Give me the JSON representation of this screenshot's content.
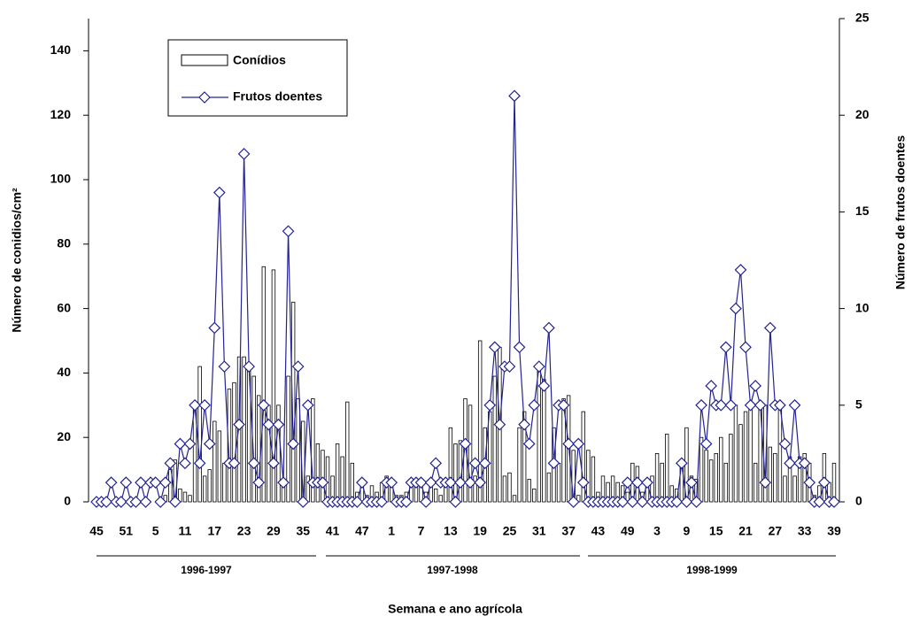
{
  "chart_data": {
    "type": "bar-line",
    "xlabel": "Semana e ano agrícola",
    "ylabel": "Número de conidios/cm²",
    "y2label": "Número de frutos doentes",
    "season_labels": [
      "1996-1997",
      "1997-1998",
      "1998-1999"
    ],
    "categories": [
      "45",
      null,
      null,
      null,
      null,
      null,
      "51",
      null,
      null,
      null,
      null,
      null,
      "5",
      null,
      null,
      null,
      null,
      null,
      "11",
      null,
      null,
      null,
      null,
      null,
      "17",
      null,
      null,
      null,
      null,
      null,
      "23",
      null,
      null,
      null,
      null,
      null,
      "29",
      null,
      null,
      null,
      null,
      null,
      "35",
      null,
      null,
      null,
      null,
      null,
      "41",
      null,
      null,
      null,
      null,
      null,
      "47",
      null,
      null,
      null,
      null,
      null,
      "1",
      null,
      null,
      null,
      null,
      null,
      "7",
      null,
      null,
      null,
      null,
      null,
      "13",
      null,
      null,
      null,
      null,
      null,
      "19",
      null,
      null,
      null,
      null,
      null,
      "25",
      null,
      null,
      null,
      null,
      null,
      "31",
      null,
      null,
      null,
      null,
      null,
      "37",
      null,
      null,
      null,
      null,
      null,
      "43",
      null,
      null,
      null,
      null,
      null,
      "49",
      null,
      null,
      null,
      null,
      null,
      "3",
      null,
      null,
      null,
      null,
      null,
      "9",
      null,
      null,
      null,
      null,
      null,
      "15",
      null,
      null,
      null,
      null,
      null,
      "21",
      null,
      null,
      null,
      null,
      null,
      "27",
      null,
      null,
      null,
      null,
      null,
      "33",
      null,
      null,
      null,
      null,
      null,
      "39"
    ],
    "series": [
      {
        "name": "Conídios",
        "color": "#ffffff",
        "axis": "y",
        "values": [
          0,
          0,
          0,
          0,
          0,
          0,
          0,
          0,
          0,
          0,
          0,
          0,
          0,
          0,
          2,
          10,
          13,
          4,
          3,
          2,
          30,
          42,
          8,
          10,
          25,
          22,
          12,
          35,
          37,
          45,
          45,
          41,
          39,
          33,
          73,
          30,
          72,
          30,
          5,
          39,
          62,
          32,
          25,
          8,
          32,
          18,
          16,
          14,
          8,
          18,
          14,
          31,
          12,
          3,
          6,
          2,
          5,
          3,
          6,
          8,
          6,
          2,
          2,
          3,
          5,
          5,
          5,
          3,
          6,
          4,
          2,
          5,
          23,
          18,
          19,
          32,
          30,
          8,
          50,
          23,
          28,
          39,
          48,
          8,
          9,
          2,
          23,
          28,
          7,
          4,
          41,
          38,
          9,
          23,
          12,
          32,
          33,
          16,
          2,
          28,
          16,
          14,
          3,
          8,
          6,
          8,
          6,
          5,
          3,
          12,
          11,
          3,
          5,
          8,
          15,
          12,
          21,
          5,
          4,
          12,
          23,
          8,
          7,
          20,
          16,
          13,
          15,
          20,
          12,
          21,
          30,
          24,
          28,
          30,
          12,
          31,
          30,
          17,
          15,
          30,
          8,
          14,
          8,
          14,
          15,
          12,
          2,
          5,
          15,
          6,
          12
        ]
      },
      {
        "name": "Frutos doentes",
        "color": "#232391",
        "axis": "y2",
        "values": [
          0,
          0,
          0,
          1,
          0,
          0,
          1,
          0,
          0,
          1,
          0,
          1,
          1,
          0,
          1,
          2,
          0,
          3,
          2,
          3,
          5,
          2,
          5,
          3,
          9,
          16,
          7,
          2,
          2,
          4,
          18,
          7,
          2,
          1,
          5,
          4,
          2,
          4,
          1,
          14,
          3,
          7,
          0,
          5,
          1,
          1,
          1,
          0,
          0,
          0,
          0,
          0,
          0,
          0,
          1,
          0,
          0,
          0,
          0,
          1,
          1,
          0,
          0,
          0,
          1,
          1,
          1,
          0,
          1,
          2,
          1,
          1,
          1,
          0,
          1,
          3,
          1,
          2,
          1,
          2,
          5,
          8,
          4,
          7,
          7,
          21,
          8,
          4,
          3,
          5,
          7,
          6,
          9,
          2,
          5,
          5,
          3,
          0,
          3,
          1,
          0,
          0,
          0,
          0,
          0,
          0,
          0,
          0,
          1,
          0,
          1,
          0,
          1,
          0,
          0,
          0,
          0,
          0,
          0,
          2,
          0,
          1,
          0,
          5,
          3,
          6,
          5,
          5,
          8,
          5,
          10,
          12,
          8,
          5,
          6,
          5,
          1,
          9,
          5,
          5,
          3,
          2,
          5,
          2,
          2,
          1,
          0,
          0,
          1,
          0,
          0
        ]
      }
    ],
    "ylim": [
      0,
      150
    ],
    "yticks": [
      0,
      20,
      40,
      60,
      80,
      100,
      120,
      140
    ],
    "y2lim": [
      0,
      25
    ],
    "y2ticks": [
      0,
      5,
      10,
      15,
      20,
      25
    ]
  }
}
